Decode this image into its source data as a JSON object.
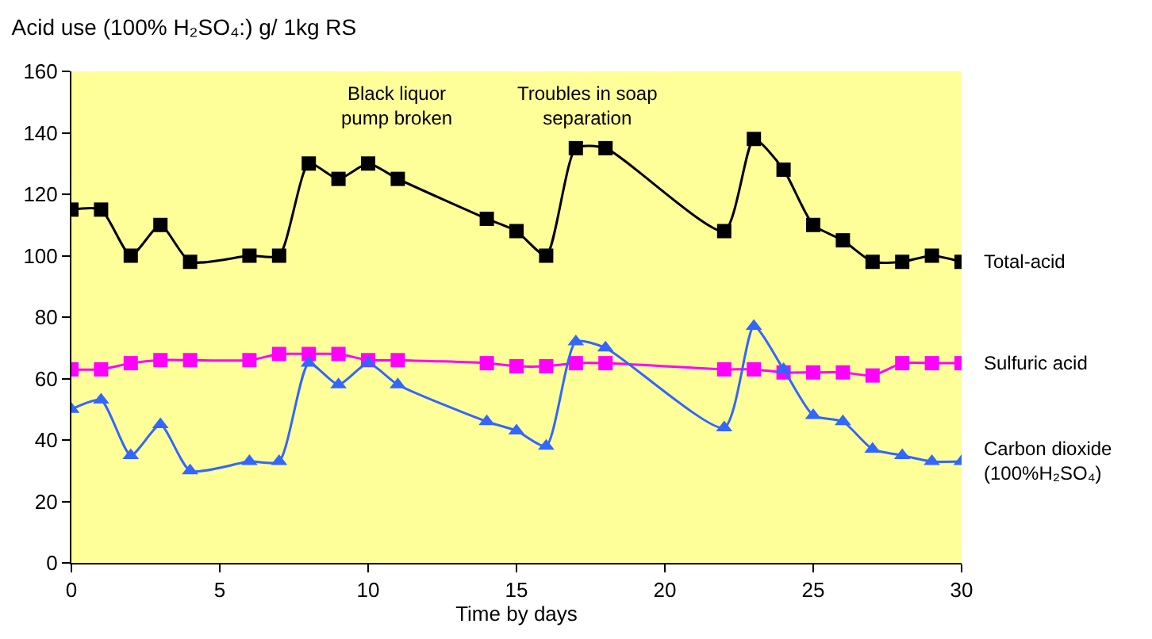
{
  "chart_data": {
    "type": "line",
    "title": "Acid use (100% H₂SO₄:) g/ 1kg RS",
    "xlabel": "Time by days",
    "x": [
      0,
      1,
      2,
      3,
      4,
      6,
      7,
      8,
      9,
      10,
      11,
      14,
      15,
      16,
      17,
      18,
      22,
      23,
      24,
      25,
      26,
      27,
      28,
      29,
      30
    ],
    "series": [
      {
        "name": "Total-acid",
        "color": "#000000",
        "marker": "square",
        "values": [
          115,
          115,
          100,
          110,
          98,
          100,
          100,
          130,
          125,
          130,
          125,
          112,
          108,
          100,
          135,
          135,
          108,
          138,
          128,
          110,
          105,
          98,
          98,
          100,
          98
        ]
      },
      {
        "name": "Sulfuric acid",
        "color": "#ff00ff",
        "marker": "square",
        "values": [
          63,
          63,
          65,
          66,
          66,
          66,
          68,
          68,
          68,
          66,
          66,
          65,
          64,
          64,
          65,
          65,
          63,
          63,
          62,
          62,
          62,
          61,
          65,
          65,
          65
        ]
      },
      {
        "name": "Carbon dioxide (100%H₂SO₄)",
        "color": "#3366ff",
        "marker": "triangle",
        "values": [
          50,
          53,
          35,
          45,
          30,
          33,
          33,
          65,
          58,
          65,
          58,
          46,
          43,
          38,
          72,
          70,
          44,
          77,
          63,
          48,
          46,
          37,
          35,
          33,
          33
        ]
      }
    ],
    "annotations": [
      "Black liquor pump broken",
      "Troubles in soap separation"
    ],
    "xlim": [
      0,
      30
    ],
    "xticks": [
      0,
      5,
      10,
      15,
      20,
      25,
      30
    ],
    "ylim": [
      0,
      160
    ],
    "yticks": [
      0,
      20,
      40,
      60,
      80,
      100,
      120,
      140,
      160
    ],
    "grid": false,
    "legend": false
  }
}
